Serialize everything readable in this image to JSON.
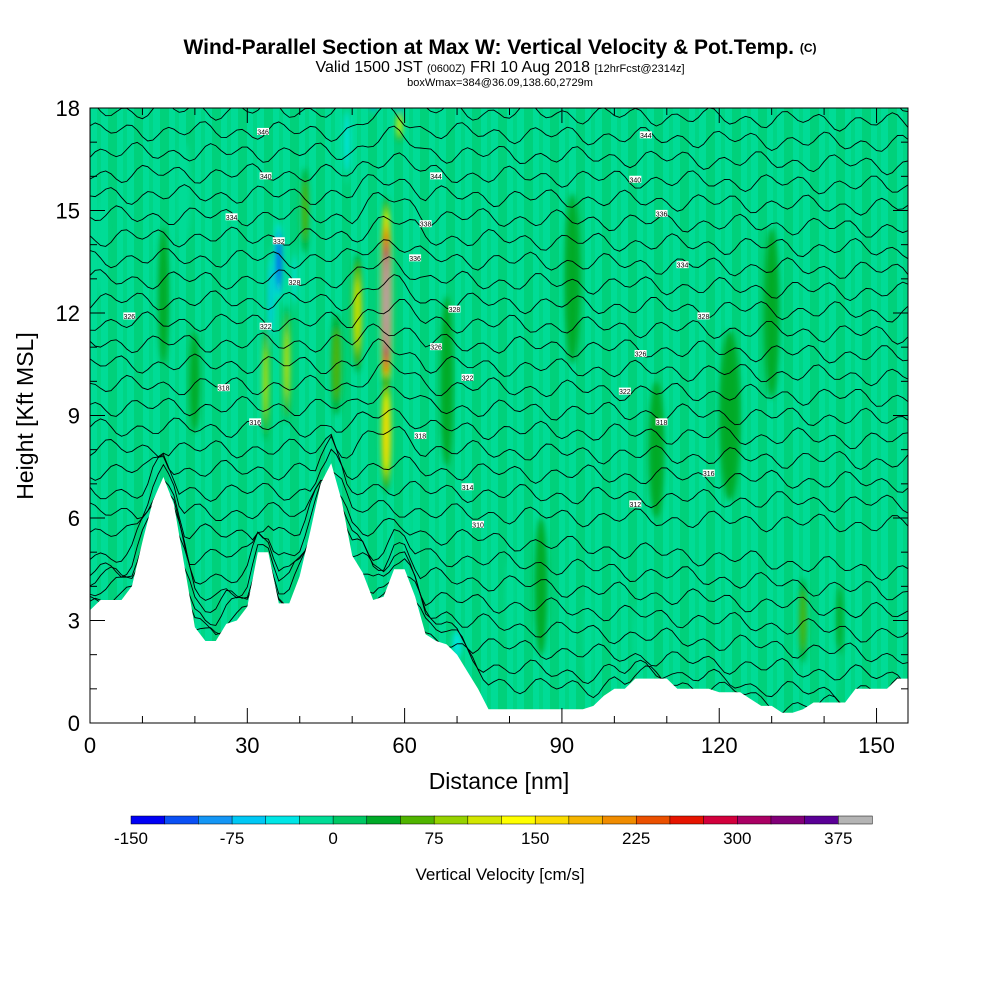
{
  "title": {
    "main": "Wind-Parallel Section at Max W: Vertical Velocity & Pot.Temp.",
    "mark": "(C)",
    "valid_a": "Valid 1500 JST",
    "valid_b": "(0600Z)",
    "valid_c": "FRI 10 Aug 2018",
    "valid_d": "[12hrFcst@2314z]",
    "box": "boxWmax=384@36.09,138.60,2729m"
  },
  "chart_data": {
    "type": "heatmap",
    "xlabel": "Distance [nm]",
    "ylabel": "Height [Kft MSL]",
    "xlim": [
      0,
      156
    ],
    "ylim": [
      0,
      18
    ],
    "x_ticks": [
      0,
      30,
      60,
      90,
      120,
      150
    ],
    "y_ticks": [
      0,
      3,
      6,
      9,
      12,
      15,
      18
    ],
    "grid": false,
    "terrain": {
      "x": [
        0,
        2,
        4,
        6,
        8,
        10,
        12,
        14,
        16,
        18,
        20,
        22,
        24,
        26,
        28,
        30,
        32,
        34,
        36,
        38,
        40,
        42,
        44,
        46,
        48,
        50,
        52,
        54,
        56,
        58,
        60,
        62,
        64,
        66,
        68,
        70,
        72,
        74,
        76,
        78,
        80,
        82,
        84,
        86,
        88,
        90,
        92,
        94,
        96,
        98,
        100,
        102,
        104,
        106,
        108,
        110,
        112,
        114,
        116,
        118,
        120,
        122,
        124,
        126,
        128,
        130,
        132,
        134,
        136,
        138,
        140,
        142,
        144,
        146,
        148,
        150,
        152,
        154,
        156
      ],
      "height_kft": [
        3.3,
        3.6,
        3.6,
        3.6,
        4.0,
        5.3,
        6.5,
        7.2,
        6.4,
        4.6,
        2.8,
        2.4,
        2.4,
        2.9,
        3.0,
        3.4,
        5.0,
        5.0,
        3.5,
        3.5,
        4.3,
        5.6,
        7.0,
        7.6,
        6.5,
        4.9,
        4.4,
        3.6,
        3.7,
        4.5,
        4.5,
        3.7,
        2.6,
        2.4,
        2.3,
        2.0,
        1.5,
        1.0,
        0.4,
        0.4,
        0.4,
        0.4,
        0.4,
        0.4,
        0.4,
        0.4,
        0.4,
        0.4,
        0.5,
        0.8,
        1.0,
        1.0,
        1.3,
        1.3,
        1.3,
        1.3,
        1.0,
        1.0,
        1.0,
        1.0,
        0.9,
        0.9,
        0.9,
        0.7,
        0.5,
        0.5,
        0.3,
        0.3,
        0.4,
        0.6,
        0.6,
        0.6,
        0.6,
        1.0,
        1.0,
        1.0,
        1.0,
        1.3,
        1.3
      ]
    },
    "updrafts": [
      {
        "x": 56.5,
        "y": 12.3,
        "w": 2.2,
        "h": 6.2,
        "value": 384
      },
      {
        "x": 56.5,
        "y": 8.5,
        "w": 2.0,
        "h": 3.5,
        "value": 150
      },
      {
        "x": 59.0,
        "y": 17.5,
        "w": 0.9,
        "h": 1.0,
        "value": 120
      },
      {
        "x": 51.0,
        "y": 12.0,
        "w": 2.0,
        "h": 3.5,
        "value": 95
      },
      {
        "x": 47.0,
        "y": 10.5,
        "w": 2.0,
        "h": 3.0,
        "value": 45
      },
      {
        "x": 37.5,
        "y": 10.5,
        "w": 1.2,
        "h": 3.5,
        "value": 100
      },
      {
        "x": 33.5,
        "y": 10.0,
        "w": 1.0,
        "h": 3.5,
        "value": 90
      },
      {
        "x": 16.0,
        "y": 4.8,
        "w": 2.0,
        "h": 1.5,
        "value": 70
      },
      {
        "x": 41.0,
        "y": 15.0,
        "w": 1.5,
        "h": 2.5,
        "value": 40
      },
      {
        "x": 14.0,
        "y": 12.5,
        "w": 2.0,
        "h": 4.0,
        "value": 30
      },
      {
        "x": 68.0,
        "y": 10.0,
        "w": 2.5,
        "h": 5.0,
        "value": 25
      },
      {
        "x": 92.0,
        "y": 13.0,
        "w": 3.0,
        "h": 5.0,
        "value": 22
      },
      {
        "x": 122.0,
        "y": 9.0,
        "w": 4.0,
        "h": 5.0,
        "value": 20
      },
      {
        "x": 130.0,
        "y": 12.0,
        "w": 3.0,
        "h": 5.0,
        "value": 20
      },
      {
        "x": 136.0,
        "y": 3.0,
        "w": 1.5,
        "h": 2.5,
        "value": 55
      },
      {
        "x": 143.0,
        "y": 3.0,
        "w": 1.2,
        "h": 2.0,
        "value": 35
      },
      {
        "x": 86.0,
        "y": 4.0,
        "w": 2.5,
        "h": 4.0,
        "value": 25
      },
      {
        "x": 108.0,
        "y": 8.0,
        "w": 3.0,
        "h": 4.0,
        "value": 20
      },
      {
        "x": 20.0,
        "y": 10.0,
        "w": 2.0,
        "h": 3.0,
        "value": 25
      }
    ],
    "downdrafts": [
      {
        "x": 36.0,
        "y": 13.5,
        "w": 1.5,
        "h": 2.5,
        "value": -150
      },
      {
        "x": 34.5,
        "y": 12.5,
        "w": 1.2,
        "h": 3.0,
        "value": -80
      },
      {
        "x": 39.0,
        "y": 13.0,
        "w": 1.0,
        "h": 2.0,
        "value": -60
      },
      {
        "x": 49.0,
        "y": 17.0,
        "w": 1.5,
        "h": 2.5,
        "value": -60
      },
      {
        "x": 54.0,
        "y": 18.2,
        "w": 0.8,
        "h": 0.8,
        "value": -150
      },
      {
        "x": 59.0,
        "y": 18.2,
        "w": 0.8,
        "h": 0.8,
        "value": -120
      },
      {
        "x": 70.0,
        "y": 2.3,
        "w": 2.0,
        "h": 1.0,
        "value": -45
      },
      {
        "x": 61.0,
        "y": 5.5,
        "w": 1.0,
        "h": 2.0,
        "value": -25
      },
      {
        "x": 18.0,
        "y": 15.5,
        "w": 2.5,
        "h": 3.0,
        "value": -20
      },
      {
        "x": 80.0,
        "y": 3.5,
        "w": 1.5,
        "h": 2.5,
        "value": -25
      },
      {
        "x": 95.0,
        "y": 2.5,
        "w": 1.5,
        "h": 2.5,
        "value": -20
      },
      {
        "x": 104.0,
        "y": 2.5,
        "w": 1.0,
        "h": 2.0,
        "value": -20
      },
      {
        "x": 142.0,
        "y": 1.5,
        "w": 1.0,
        "h": 1.5,
        "value": -20
      },
      {
        "x": 2.0,
        "y": 14.0,
        "w": 2.0,
        "h": 3.0,
        "value": -10
      }
    ],
    "isentrope_labels": [
      {
        "x": 33.0,
        "y": 17.3,
        "label": "346"
      },
      {
        "x": 33.5,
        "y": 16.0,
        "label": "340"
      },
      {
        "x": 27.0,
        "y": 14.8,
        "label": "334"
      },
      {
        "x": 36.0,
        "y": 14.1,
        "label": "332"
      },
      {
        "x": 39.0,
        "y": 12.9,
        "label": "328"
      },
      {
        "x": 33.5,
        "y": 11.6,
        "label": "322"
      },
      {
        "x": 7.5,
        "y": 11.9,
        "label": "326"
      },
      {
        "x": 25.5,
        "y": 9.8,
        "label": "318"
      },
      {
        "x": 31.5,
        "y": 8.8,
        "label": "316"
      },
      {
        "x": 66.0,
        "y": 16.0,
        "label": "344"
      },
      {
        "x": 64.0,
        "y": 14.6,
        "label": "338"
      },
      {
        "x": 62.0,
        "y": 13.6,
        "label": "336"
      },
      {
        "x": 69.5,
        "y": 12.1,
        "label": "328"
      },
      {
        "x": 66.0,
        "y": 11.0,
        "label": "326"
      },
      {
        "x": 72.0,
        "y": 10.1,
        "label": "322"
      },
      {
        "x": 63.0,
        "y": 8.4,
        "label": "318"
      },
      {
        "x": 72.0,
        "y": 6.9,
        "label": "314"
      },
      {
        "x": 74.0,
        "y": 5.8,
        "label": "310"
      },
      {
        "x": 106.0,
        "y": 17.2,
        "label": "344"
      },
      {
        "x": 104.0,
        "y": 15.9,
        "label": "340"
      },
      {
        "x": 109.0,
        "y": 14.9,
        "label": "336"
      },
      {
        "x": 113.0,
        "y": 13.4,
        "label": "334"
      },
      {
        "x": 117.0,
        "y": 11.9,
        "label": "328"
      },
      {
        "x": 105.0,
        "y": 10.8,
        "label": "326"
      },
      {
        "x": 102.0,
        "y": 9.7,
        "label": "322"
      },
      {
        "x": 109.0,
        "y": 8.8,
        "label": "318"
      },
      {
        "x": 118.0,
        "y": 7.3,
        "label": "316"
      },
      {
        "x": 104.0,
        "y": 6.4,
        "label": "312"
      }
    ],
    "colorbar": {
      "label": "Vertical Velocity [cm/s]",
      "min": -150,
      "max": 400,
      "step": 25,
      "ticks": [
        -150,
        -75,
        0,
        75,
        150,
        225,
        300,
        375
      ],
      "colors": [
        "#0000f5",
        "#0a50f5",
        "#1496f5",
        "#00c8f5",
        "#00e6e6",
        "#00dc96",
        "#00c864",
        "#00aa28",
        "#50b400",
        "#96d200",
        "#d2e600",
        "#ffff00",
        "#fadc00",
        "#f5b400",
        "#f08c00",
        "#eb5000",
        "#e61400",
        "#d2003c",
        "#aa0064",
        "#820078",
        "#5a0096",
        "#b4b4b4"
      ]
    }
  }
}
